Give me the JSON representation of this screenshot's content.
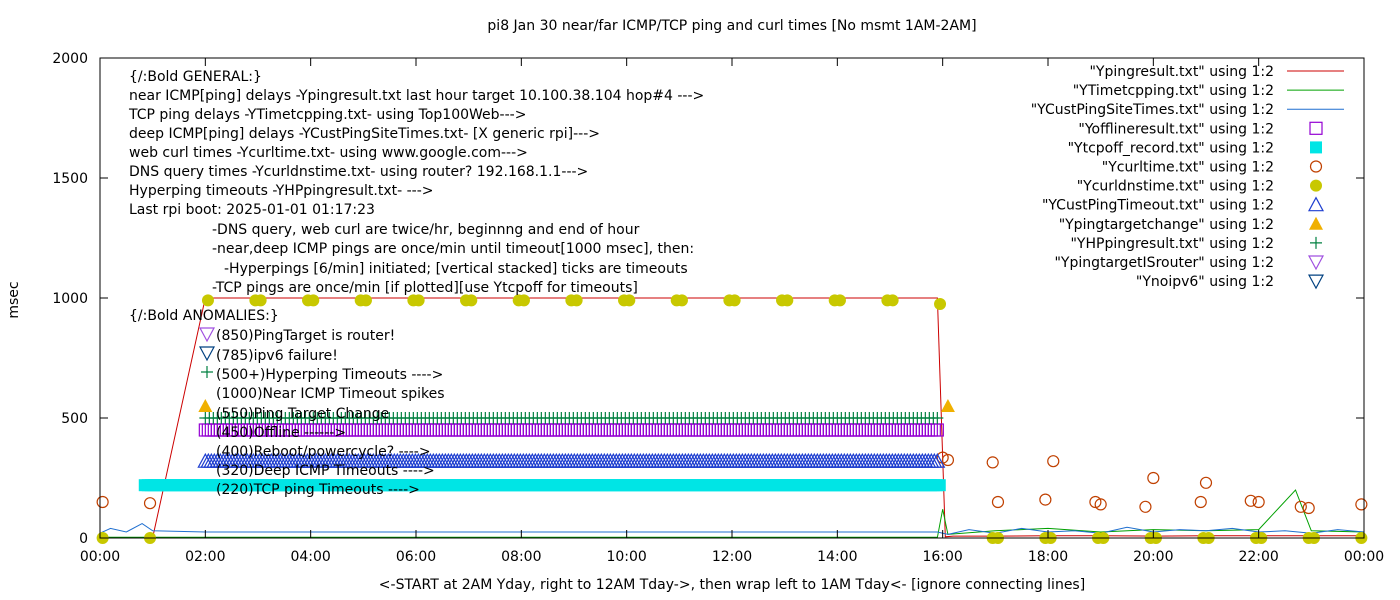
{
  "chart_data": {
    "type": "line",
    "title": "pi8 Jan 30  near/far ICMP/TCP ping and curl times [No msmt 1AM-2AM]",
    "xlabel": "<-START at 2AM Yday, right to 12AM Tday->, then wrap left to 1AM Tday<- [ignore connecting lines]",
    "ylabel": "msec",
    "xlim": [
      0,
      24
    ],
    "ylim": [
      0,
      2000
    ],
    "x_ticks": [
      {
        "value": 0,
        "label": "00:00"
      },
      {
        "value": 2,
        "label": "02:00"
      },
      {
        "value": 4,
        "label": "04:00"
      },
      {
        "value": 6,
        "label": "06:00"
      },
      {
        "value": 8,
        "label": "08:00"
      },
      {
        "value": 10,
        "label": "10:00"
      },
      {
        "value": 12,
        "label": "12:00"
      },
      {
        "value": 14,
        "label": "14:00"
      },
      {
        "value": 16,
        "label": "16:00"
      },
      {
        "value": 18,
        "label": "18:00"
      },
      {
        "value": 20,
        "label": "20:00"
      },
      {
        "value": 22,
        "label": "22:00"
      },
      {
        "value": 24,
        "label": "00:00"
      }
    ],
    "y_ticks": [
      {
        "value": 0,
        "label": "0"
      },
      {
        "value": 500,
        "label": "500"
      },
      {
        "value": 1000,
        "label": "1000"
      },
      {
        "value": 1500,
        "label": "1500"
      },
      {
        "value": 2000,
        "label": "2000"
      }
    ],
    "grid": false,
    "legend_position": "top-right",
    "annotations": [
      "{/:Bold GENERAL:}",
      "near ICMP[ping] delays -Ypingresult.txt last hour target 10.100.38.104 hop#4 --->",
      "TCP ping delays -YTimetcpping.txt- using Top100Web--->",
      "deep ICMP[ping] delays -YCustPingSiteTimes.txt- [X generic rpi]--->",
      "web curl times -Ycurltime.txt- using www.google.com--->",
      "DNS query times -Ycurldnstime.txt- using router? 192.168.1.1--->",
      "Hyperping timeouts -YHPpingresult.txt- --->",
      "Last rpi boot: 2025-01-01 01:17:23",
      "-DNS query, web curl are twice/hr, beginnng and end of hour",
      "-near,deep ICMP pings are once/min until timeout[1000 msec], then:",
      "-Hyperpings [6/min] initiated; [vertical stacked] ticks are timeouts",
      "-TCP pings are once/min [if plotted][use Ytcpoff for timeouts]",
      "{/:Bold ANOMALIES:}",
      "(850)PingTarget is router!",
      "(785)ipv6 failure!",
      "(500+)Hyperping Timeouts ---->",
      "(1000)Near ICMP Timeout spikes",
      "(550)Ping Target Change",
      "(450)Offline ------>",
      "(400)Reboot/powercycle? ---->",
      "(320)Deep ICMP Timeouts ---->",
      "(220)TCP ping Timeouts ---->"
    ],
    "series": [
      {
        "name": "\"Ypingresult.txt\" using 1:2",
        "color": "#cc0000",
        "marker": "line",
        "x": [
          0,
          1,
          2,
          3,
          4,
          5,
          6,
          7,
          8,
          9,
          10,
          11,
          12,
          13,
          14,
          15,
          15.9,
          16.05,
          16.2,
          17,
          18,
          19,
          20,
          21,
          22,
          23,
          24
        ],
        "y": [
          2,
          2,
          1000,
          1000,
          1000,
          1000,
          1000,
          1000,
          1000,
          1000,
          1000,
          1000,
          1000,
          1000,
          1000,
          1000,
          1000,
          5,
          8,
          8,
          9,
          9,
          8,
          9,
          9,
          9,
          9
        ]
      },
      {
        "name": "\"YTimetcpping.txt\" using 1:2",
        "color": "#00a000",
        "marker": "line",
        "x": [
          0,
          2,
          4,
          6,
          8,
          10,
          12,
          14,
          15.9,
          16.0,
          16.1,
          17,
          18,
          19,
          20,
          21,
          22,
          22.7,
          23,
          24
        ],
        "y": [
          3,
          3,
          3,
          3,
          3,
          3,
          3,
          3,
          3,
          120,
          15,
          30,
          40,
          25,
          35,
          30,
          35,
          200,
          30,
          25
        ]
      },
      {
        "name": "\"YCustPingSiteTimes.txt\" using 1:2",
        "color": "#1f6fd0",
        "marker": "line",
        "x": [
          0,
          0.2,
          0.5,
          0.8,
          1.0,
          2,
          4,
          6,
          8,
          10,
          12,
          14,
          15.9,
          16.1,
          16.5,
          17,
          17.5,
          18,
          18.5,
          19,
          19.5,
          20,
          20.5,
          21,
          21.5,
          22,
          22.5,
          23,
          23.5,
          24
        ],
        "y": [
          20,
          40,
          25,
          60,
          30,
          25,
          25,
          25,
          25,
          25,
          25,
          25,
          25,
          15,
          35,
          20,
          40,
          25,
          30,
          20,
          45,
          25,
          35,
          30,
          40,
          25,
          30,
          20,
          35,
          25
        ]
      },
      {
        "name": "\"Yofflineresult.txt\" using 1:2",
        "color": "#9400d3",
        "marker": "open-square",
        "x": [
          2,
          15.95
        ],
        "y": [
          450,
          450
        ]
      },
      {
        "name": "\"Ytcpoff_record.txt\" using 1:2",
        "color": "#00e5e5",
        "marker": "filled-square",
        "x": [
          0.85,
          15.95
        ],
        "y": [
          220,
          220
        ]
      },
      {
        "name": "\"Ycurltime.txt\" using 1:2",
        "color": "#c04000",
        "marker": "open-circle",
        "x": [
          0.05,
          0.95,
          16.0,
          16.1,
          16.95,
          17.05,
          17.95,
          18.1,
          18.9,
          19.0,
          19.85,
          20.0,
          20.9,
          21.0,
          21.85,
          22.0,
          22.8,
          22.95,
          23.95
        ],
        "y": [
          150,
          145,
          335,
          325,
          315,
          150,
          160,
          320,
          150,
          140,
          130,
          250,
          150,
          230,
          155,
          150,
          130,
          125,
          140
        ]
      },
      {
        "name": "\"Ycurldnstime.txt\" using 1:2",
        "color": "#c8c800",
        "marker": "filled-circle",
        "x": [
          0.05,
          0.95,
          2.05,
          2.95,
          3.05,
          3.95,
          4.05,
          4.95,
          5.05,
          5.95,
          6.05,
          6.95,
          7.05,
          7.95,
          8.05,
          8.95,
          9.05,
          9.95,
          10.05,
          10.95,
          11.05,
          11.95,
          12.05,
          12.95,
          13.05,
          13.95,
          14.05,
          14.95,
          15.05,
          15.95,
          16.95,
          17.05,
          17.95,
          18.05,
          18.95,
          19.05,
          19.95,
          20.05,
          20.95,
          21.05,
          21.95,
          22.05,
          22.95,
          23.05,
          23.95
        ],
        "y": [
          0,
          0,
          990,
          990,
          990,
          990,
          990,
          990,
          990,
          990,
          990,
          990,
          990,
          990,
          990,
          990,
          990,
          990,
          990,
          990,
          990,
          990,
          990,
          990,
          990,
          990,
          990,
          990,
          990,
          975,
          0,
          0,
          0,
          0,
          0,
          0,
          0,
          0,
          0,
          0,
          0,
          0,
          0,
          0,
          0
        ]
      },
      {
        "name": "\"YCustPingTimeout.txt\" using 1:2",
        "color": "#1f3fd0",
        "marker": "open-triangle-up",
        "x": [
          2,
          15.95
        ],
        "y": [
          320,
          320
        ]
      },
      {
        "name": "\"Ypingtargetchange\" using 1:2",
        "color": "#f0b000",
        "marker": "filled-triangle-up",
        "x": [
          2.0,
          16.1
        ],
        "y": [
          550,
          550
        ]
      },
      {
        "name": "\"YHPpingresult.txt\" using 1:2",
        "color": "#008040",
        "marker": "plus",
        "x": [
          2,
          15.95
        ],
        "y": [
          500,
          500
        ]
      },
      {
        "name": "\"YpingtargetISrouter\" using 1:2",
        "color": "#a050e0",
        "marker": "open-triangle-down",
        "x": [],
        "y": []
      },
      {
        "name": "\"Ynoipv6\" using 1:2",
        "color": "#004080",
        "marker": "open-triangle-down",
        "x": [],
        "y": []
      }
    ]
  }
}
